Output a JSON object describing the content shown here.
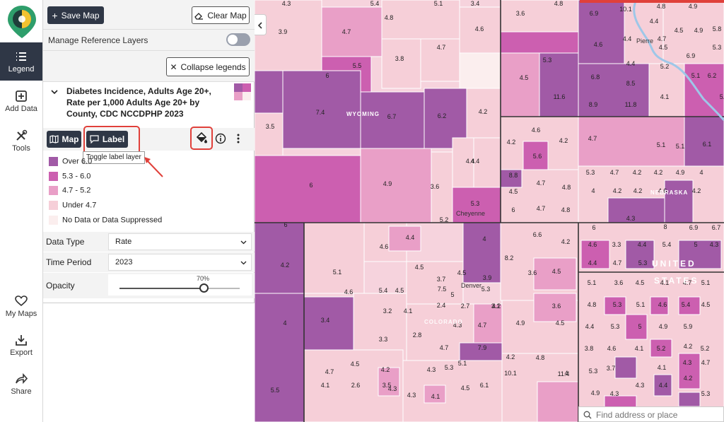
{
  "rail": {
    "items": [
      {
        "label": "Legend",
        "icon": "list-icon",
        "active": true
      },
      {
        "label": "Add Data",
        "icon": "plus-square-icon"
      },
      {
        "label": "Tools",
        "icon": "tools-icon"
      },
      {
        "label": "My Maps",
        "icon": "heart-icon"
      },
      {
        "label": "Export",
        "icon": "download-icon"
      },
      {
        "label": "Share",
        "icon": "share-icon"
      }
    ]
  },
  "toolbar": {
    "save_map": "Save Map",
    "clear_map": "Clear Map"
  },
  "manage_layers": {
    "label": "Manage Reference Layers",
    "enabled": false
  },
  "collapse_legends": "Collapse legends",
  "layer": {
    "title": "Diabetes Incidence, Adults Age 20+, Rate per 1,000 Adults Age 20+ by County, CDC NCCDPHP 2023",
    "map_button": "Map",
    "label_button": "Label",
    "tooltip": "Toggle label layer",
    "legend": [
      {
        "label": "Over 6.0",
        "color": "#a15aa6"
      },
      {
        "label": "5.3 - 6.0",
        "color": "#cc5fb0"
      },
      {
        "label": "4.7 - 5.2",
        "color": "#e99fc7"
      },
      {
        "label": "Under 4.7",
        "color": "#f6cfd8"
      },
      {
        "label": "No Data or Data Suppressed",
        "color": "#fbeeee"
      }
    ]
  },
  "controls": {
    "data_type_label": "Data Type",
    "data_type_value": "Rate",
    "time_period_label": "Time Period",
    "time_period_value": "2023",
    "opacity_label": "Opacity",
    "opacity_value": "70%",
    "opacity_fraction": 0.7
  },
  "map": {
    "state_labels": [
      "WYOMING",
      "NEBRASKA",
      "COLORADO",
      "UNITED",
      "STATES"
    ],
    "city_labels": [
      "Pierre",
      "Cheyenne",
      "Denver"
    ],
    "search_placeholder": "Find address or place",
    "county_values": [
      "4.3",
      "5.4",
      "5.1",
      "3.4",
      "4.8",
      "3.6",
      "6.9",
      "10.1",
      "4.8",
      "4.9",
      "4.4",
      "4.5",
      "4.9",
      "3.9",
      "4.7",
      "4.8",
      "4.6",
      "4.7",
      "4.6",
      "4.4",
      "6.9",
      "4.5",
      "5.3",
      "5.8",
      "4.7",
      "3.8",
      "5.5",
      "6",
      "4.4",
      "5.2",
      "5.1",
      "6.2",
      "5.3",
      "6.8",
      "8.5",
      "4.5",
      "11.6",
      "7.4",
      "6.7",
      "6.2",
      "4.2",
      "8.9",
      "11.8",
      "5.2",
      "4.1",
      "3.5",
      "4.6",
      "6",
      "4.7",
      "4.2",
      "5.6",
      "4.2",
      "5.1",
      "5.1",
      "6.1",
      "8.8",
      "4.5",
      "4.7",
      "4.8",
      "5.3",
      "4.7",
      "4.2",
      "4.2",
      "4.9",
      "4",
      "4.4",
      "4.9",
      "3.6",
      "4.4",
      "4",
      "4.2",
      "4.2",
      "4.6",
      "4.2",
      "6",
      "4.7",
      "4.8",
      "5.3",
      "6",
      "4.3",
      "8",
      "6.9",
      "6.7",
      "6",
      "4.4",
      "5.2",
      "4",
      "6.6",
      "4.2",
      "4.6",
      "4.6",
      "3.3",
      "4.4",
      "5.4",
      "5",
      "4.3",
      "4.2",
      "4.5",
      "8.2",
      "3.6",
      "4.5",
      "4.4",
      "4.7",
      "5.3",
      "5.1",
      "5.1",
      "4.5",
      "3.9",
      "3.7",
      "7.5",
      "5.3",
      "3.6",
      "4.5",
      "4.1",
      "4.7",
      "5.1",
      "4.6",
      "5.4",
      "4.5",
      "2.7",
      "2.4",
      "3.1",
      "3.6",
      "4.8",
      "5.3",
      "5.1",
      "4.6",
      "5.4",
      "4.5",
      "3.2",
      "4.1",
      "5",
      "4.2",
      "4",
      "4.9",
      "4.4",
      "5.3",
      "5",
      "4.9",
      "5.9",
      "3.4",
      "4.3",
      "3.3",
      "2.8",
      "4.7",
      "4.5",
      "3.8",
      "4.6",
      "4.1",
      "5.2",
      "4.2",
      "5.2",
      "4.7",
      "7.9",
      "4.2",
      "4.8",
      "5.1",
      "10.1",
      "4",
      "5.3",
      "3.7",
      "4.1",
      "4.3",
      "4.7",
      "4.7",
      "4.5",
      "4.2",
      "4.3",
      "4.3",
      "5.3",
      "4.3",
      "6.1",
      "11.4",
      "4.9",
      "4.3",
      "4.3",
      "4.4",
      "4.2",
      "5.3",
      "5.5",
      "4.1",
      "2.6",
      "3.5",
      "4.1",
      "4.5"
    ]
  }
}
